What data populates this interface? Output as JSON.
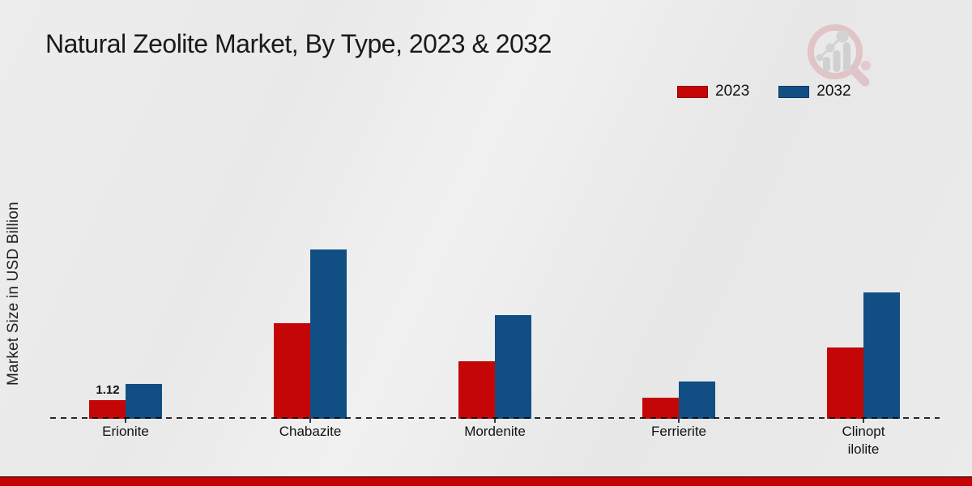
{
  "page": {
    "title": "Natural Zeolite Market, By Type, 2023 & 2032",
    "y_axis_label": "Market Size in USD Billion",
    "brand_logo_icon": "magnifier-bar-chart-logo"
  },
  "legend": {
    "items": [
      {
        "label": "2023",
        "color": "#c50606",
        "border": "#8e0404"
      },
      {
        "label": "2032",
        "color": "#114e84",
        "border": "#0b3a63"
      }
    ]
  },
  "colors": {
    "background": "#eaeaea",
    "series_2023": "#c50606",
    "series_2032": "#114e84",
    "baseline": "#2b2b2b",
    "text": "#1a1a1a",
    "bottom_bar": "#c40404",
    "bottom_bar_edge": "#7d1010"
  },
  "chart_data": {
    "type": "bar",
    "title": "Natural Zeolite Market, By Type, 2023 & 2032",
    "ylabel": "Market Size in USD Billion",
    "xlabel": "",
    "units": "USD Billion",
    "categories": [
      "Erionite",
      "Chabazite",
      "Mordenite",
      "Ferrierite",
      "Clinoptilolite"
    ],
    "category_display": [
      "Erionite",
      "Chabazite",
      "Mordenite",
      "Ferrierite",
      "Clinopt\nilolite"
    ],
    "series": [
      {
        "name": "2023",
        "color": "#c50606",
        "values": [
          1.12,
          5.75,
          3.45,
          1.27,
          4.3
        ]
      },
      {
        "name": "2032",
        "color": "#114e84",
        "values": [
          2.1,
          10.2,
          6.25,
          2.24,
          7.6
        ]
      }
    ],
    "data_labels": [
      {
        "category": "Erionite",
        "series": "2023",
        "text": "1.12"
      }
    ],
    "ylim": [
      0,
      11
    ],
    "grid": false,
    "legend_position": "top-right",
    "zero_line": "dashed",
    "y_tick_labels_visible": false
  }
}
